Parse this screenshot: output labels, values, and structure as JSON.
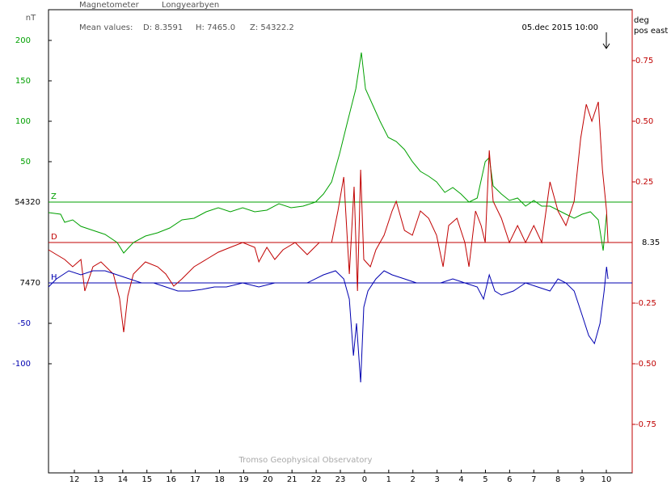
{
  "chart_data": {
    "type": "line",
    "title": "Magnetometer",
    "station": "Longyearbyen",
    "mean_values_label": "Mean values:",
    "mean_values": [
      "D: 8.3591",
      "H: 7465.0",
      "Z: 54322.2"
    ],
    "timestamp": "05.dec 2015 10:00",
    "footer": "Tromso Geophysical Observatory",
    "ylabel": "nT",
    "y2label": [
      "deg",
      "pos east"
    ],
    "xlim": [
      10.93,
      35.07
    ],
    "xticks": [
      12,
      13,
      14,
      15,
      16,
      17,
      18,
      19,
      20,
      21,
      22,
      23,
      {
        "value": 24,
        "label": "0"
      },
      {
        "value": 25,
        "label": "1"
      },
      {
        "value": 26,
        "label": "2"
      },
      {
        "value": 27,
        "label": "3"
      },
      {
        "value": 28,
        "label": "4"
      },
      {
        "value": 29,
        "label": "5"
      },
      {
        "value": 30,
        "label": "6"
      },
      {
        "value": 31,
        "label": "7"
      },
      {
        "value": 32,
        "label": "8"
      },
      {
        "value": 33,
        "label": "9"
      },
      {
        "value": 34,
        "label": "10"
      }
    ],
    "ylim": [
      -335,
      238
    ],
    "yticks": [
      200,
      150,
      100,
      50,
      {
        "value": -150,
        "label": "-50"
      },
      {
        "value": -200,
        "label": "-100"
      }
    ],
    "y2lim": [
      -0.95,
      0.96
    ],
    "y2ticks": [
      0.75,
      {
        "value": 0.5,
        "label": "0.50"
      },
      0.25,
      -0.25,
      {
        "value": -0.5,
        "label": "-0.50"
      },
      -0.75
    ],
    "y2color": "#c00000",
    "series": [
      {
        "name": "Z",
        "color": "#00a000",
        "axis": "y",
        "baseline": {
          "value": 0,
          "label": "54320"
        },
        "x": [
          10.93,
          11.43,
          11.6,
          11.93,
          12.27,
          12.77,
          13.27,
          13.77,
          14.04,
          14.44,
          14.94,
          15.44,
          15.95,
          16.45,
          16.95,
          17.45,
          17.95,
          18.45,
          18.96,
          19.46,
          19.96,
          20.46,
          20.96,
          21.46,
          21.97,
          22.3,
          22.64,
          22.97,
          23.3,
          23.64,
          23.87,
          24.04,
          24.31,
          24.64,
          24.98,
          25.31,
          25.65,
          25.98,
          26.31,
          26.65,
          26.98,
          27.32,
          27.65,
          27.99,
          28.32,
          28.66,
          28.99,
          29.16,
          29.32,
          29.66,
          29.99,
          30.33,
          30.66,
          31.0,
          31.33,
          31.67,
          32.0,
          32.33,
          32.67,
          33.0,
          33.34,
          33.67,
          33.87,
          34.01
        ],
        "values": [
          -13,
          -15,
          -25,
          -22,
          -30,
          -35,
          -40,
          -50,
          -63,
          -50,
          -42,
          -38,
          -32,
          -22,
          -20,
          -12,
          -7,
          -12,
          -7,
          -12,
          -10,
          -2,
          -7,
          -5,
          0,
          10,
          25,
          60,
          100,
          140,
          185,
          140,
          122,
          100,
          80,
          75,
          65,
          50,
          38,
          32,
          25,
          12,
          18,
          10,
          0,
          5,
          50,
          55,
          20,
          10,
          2,
          5,
          -5,
          2,
          -5,
          -5,
          -10,
          -15,
          -20,
          -15,
          -12,
          -22,
          -60,
          -15
        ]
      },
      {
        "name": "D",
        "color": "#c00000",
        "axis": "y2",
        "baseline": {
          "value": 0,
          "label": "8.35"
        },
        "x": [
          10.93,
          11.26,
          11.6,
          11.93,
          12.27,
          12.43,
          12.77,
          13.1,
          13.61,
          13.87,
          14.04,
          14.21,
          14.44,
          14.94,
          15.44,
          15.78,
          16.11,
          16.45,
          16.95,
          17.45,
          17.95,
          18.45,
          18.96,
          19.46,
          19.63,
          19.96,
          20.29,
          20.63,
          21.13,
          21.63,
          22.13,
          22.64,
          22.9,
          23.14,
          23.37,
          23.57,
          23.71,
          23.84,
          23.97,
          24.24,
          24.47,
          24.81,
          25.14,
          25.31,
          25.65,
          25.98,
          26.31,
          26.65,
          26.98,
          27.25,
          27.48,
          27.82,
          28.15,
          28.32,
          28.59,
          28.82,
          28.99,
          29.16,
          29.32,
          29.66,
          29.99,
          30.33,
          30.66,
          31.0,
          31.33,
          31.67,
          32.0,
          32.33,
          32.67,
          32.94,
          33.17,
          33.4,
          33.67,
          33.84,
          34.01,
          34.07
        ],
        "values": [
          -0.03,
          -0.05,
          -0.07,
          -0.1,
          -0.07,
          -0.2,
          -0.1,
          -0.08,
          -0.13,
          -0.23,
          -0.37,
          -0.22,
          -0.13,
          -0.08,
          -0.1,
          -0.13,
          -0.18,
          -0.15,
          -0.1,
          -0.07,
          -0.04,
          -0.02,
          0,
          -0.02,
          -0.08,
          -0.02,
          -0.07,
          -0.03,
          0,
          -0.05,
          0,
          0,
          0.13,
          0.27,
          -0.13,
          0.23,
          -0.2,
          0.3,
          -0.07,
          -0.1,
          -0.03,
          0.03,
          0.13,
          0.17,
          0.05,
          0.03,
          0.13,
          0.1,
          0.03,
          -0.1,
          0.07,
          0.1,
          0,
          -0.1,
          0.13,
          0.07,
          0,
          0.38,
          0.17,
          0.1,
          0,
          0.07,
          0,
          0.07,
          0,
          0.25,
          0.13,
          0.07,
          0.17,
          0.43,
          0.57,
          0.5,
          0.58,
          0.3,
          0.13,
          0
        ]
      },
      {
        "name": "H",
        "color": "#0000b0",
        "axis": "y",
        "baseline": {
          "value": -100,
          "label": "7470"
        },
        "x": [
          10.93,
          11.26,
          11.77,
          12.27,
          12.77,
          13.27,
          13.77,
          14.27,
          14.78,
          15.28,
          15.78,
          16.28,
          16.78,
          17.28,
          17.79,
          18.29,
          18.96,
          19.63,
          20.29,
          20.96,
          21.63,
          22.3,
          22.8,
          23.14,
          23.37,
          23.54,
          23.67,
          23.84,
          23.97,
          24.14,
          24.47,
          24.81,
          25.14,
          25.65,
          26.15,
          26.65,
          27.15,
          27.65,
          28.15,
          28.66,
          28.92,
          29.16,
          29.39,
          29.66,
          30.16,
          30.66,
          31.16,
          31.67,
          32.0,
          32.33,
          32.67,
          33.0,
          33.27,
          33.51,
          33.74,
          33.91,
          34.01,
          34.07
        ],
        "values": [
          -105,
          -95,
          -85,
          -90,
          -85,
          -85,
          -90,
          -95,
          -100,
          -100,
          -105,
          -110,
          -110,
          -108,
          -105,
          -105,
          -100,
          -105,
          -100,
          -100,
          -100,
          -90,
          -85,
          -95,
          -120,
          -190,
          -150,
          -223,
          -130,
          -110,
          -95,
          -85,
          -90,
          -95,
          -100,
          -100,
          -100,
          -95,
          -100,
          -105,
          -120,
          -90,
          -110,
          -115,
          -110,
          -100,
          -105,
          -110,
          -95,
          -100,
          -110,
          -140,
          -165,
          -175,
          -150,
          -110,
          -80,
          -95
        ]
      }
    ]
  }
}
